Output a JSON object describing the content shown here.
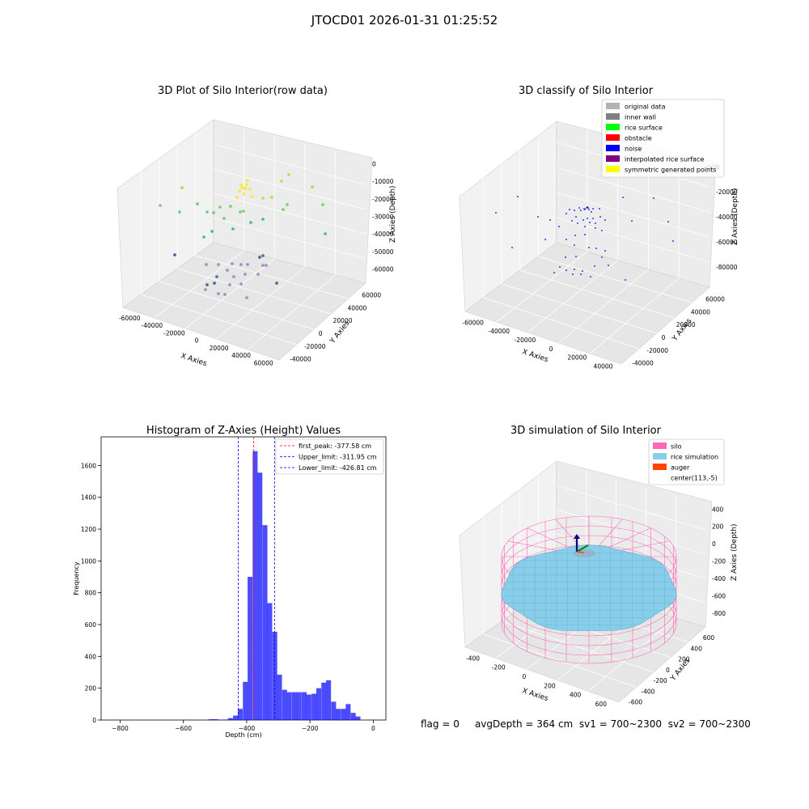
{
  "suptitle": "JTOCD01 2026-01-31 01:25:52",
  "status": {
    "flag": "flag = 0",
    "avg_depth": "avgDepth = 364 cm",
    "sv1": "sv1 = 700~2300",
    "sv2": "sv2 = 700~2300"
  },
  "chart_data": [
    {
      "type": "scatter",
      "title": "3D Plot of Silo Interior(row data)",
      "xlabel": "X Axies",
      "ylabel": "Y Axies",
      "zlabel": "Z Axies (Depth)",
      "x_ticks": [
        "-60000",
        "-40000",
        "-20000",
        "0",
        "20000",
        "40000",
        "60000"
      ],
      "y_ticks": [
        "-40000",
        "-20000",
        "0",
        "20000",
        "40000",
        "60000"
      ],
      "z_ticks": [
        "0",
        "-10000",
        "-20000",
        "-30000",
        "-40000",
        "-50000",
        "-60000"
      ],
      "grid": true,
      "colormap": "viridis"
    },
    {
      "type": "scatter",
      "title": "3D classify of Silo Interior",
      "xlabel": "X Axies",
      "ylabel": "Y Axies",
      "zlabel": "Z Axies (Depth)",
      "x_ticks": [
        "-60000",
        "-40000",
        "-20000",
        "0",
        "20000",
        "40000"
      ],
      "y_ticks": [
        "-40000",
        "-20000",
        "0",
        "20000",
        "40000",
        "60000"
      ],
      "z_ticks": [
        "0",
        "-20000",
        "-40000",
        "-60000",
        "-80000"
      ],
      "z_top_partial": "000",
      "grid": true,
      "legend_position": "top-right",
      "legend": [
        {
          "label": "original data",
          "color": "#b3b3b3"
        },
        {
          "label": "inner wall",
          "color": "#808080"
        },
        {
          "label": "rice surface",
          "color": "#00ff00"
        },
        {
          "label": "obstacle",
          "color": "#ff0000"
        },
        {
          "label": "noise",
          "color": "#0000ff"
        },
        {
          "label": "interpolated rice surface",
          "color": "#800080"
        },
        {
          "label": "symmetric generated points",
          "color": "#ffff00"
        }
      ]
    },
    {
      "type": "bar",
      "title": "Histogram of Z-Axies (Height) Values",
      "xlabel": "Depth (cm)",
      "ylabel": "Frequency",
      "xlim": [
        -860,
        40
      ],
      "ylim": [
        0,
        1780
      ],
      "x_ticks": [
        -800,
        -600,
        -400,
        -200,
        0
      ],
      "y_ticks": [
        0,
        200,
        400,
        600,
        800,
        1000,
        1200,
        1400,
        1600
      ],
      "bar_color": "#0000ff",
      "bin_width": 15.5,
      "bins": [
        {
          "left": -520,
          "count": 5
        },
        {
          "left": -505,
          "count": 5
        },
        {
          "left": -490,
          "count": 2
        },
        {
          "left": -474,
          "count": 3
        },
        {
          "left": -459,
          "count": 12
        },
        {
          "left": -443,
          "count": 28
        },
        {
          "left": -428,
          "count": 70
        },
        {
          "left": -412,
          "count": 240
        },
        {
          "left": -397,
          "count": 900
        },
        {
          "left": -381,
          "count": 1690
        },
        {
          "left": -366,
          "count": 1555
        },
        {
          "left": -350,
          "count": 1225
        },
        {
          "left": -335,
          "count": 735
        },
        {
          "left": -319,
          "count": 555
        },
        {
          "left": -304,
          "count": 285
        },
        {
          "left": -288,
          "count": 190
        },
        {
          "left": -273,
          "count": 175
        },
        {
          "left": -257,
          "count": 175
        },
        {
          "left": -242,
          "count": 175
        },
        {
          "left": -226,
          "count": 175
        },
        {
          "left": -211,
          "count": 160
        },
        {
          "left": -195,
          "count": 165
        },
        {
          "left": -180,
          "count": 200
        },
        {
          "left": -164,
          "count": 235
        },
        {
          "left": -149,
          "count": 250
        },
        {
          "left": -133,
          "count": 115
        },
        {
          "left": -118,
          "count": 70
        },
        {
          "left": -102,
          "count": 70
        },
        {
          "left": -87,
          "count": 100
        },
        {
          "left": -71,
          "count": 45
        },
        {
          "left": -56,
          "count": 22
        },
        {
          "left": -40,
          "count": 0
        }
      ],
      "lines": [
        {
          "label": "first_peak: -377.58 cm",
          "x": -377.58,
          "color": "#ff0000"
        },
        {
          "label": "Upper_limit: -311.95 cm",
          "x": -311.95,
          "color": "#0000ff"
        },
        {
          "label": "Lower_limit: -426.81 cm",
          "x": -426.81,
          "color": "#0000ff"
        }
      ],
      "legend_position": "top-right"
    },
    {
      "type": "scatter",
      "title": "3D simulation of Silo Interior",
      "xlabel": "X Axies",
      "ylabel": "Y Axies",
      "zlabel": "Z Axies (Depth)",
      "x_ticks": [
        "-400",
        "-200",
        "0",
        "200",
        "400",
        "600"
      ],
      "y_ticks": [
        "-600",
        "-400",
        "-200",
        "0",
        "200",
        "400",
        "600"
      ],
      "z_ticks": [
        "400",
        "200",
        "0",
        "-200",
        "-400",
        "-600",
        "-800"
      ],
      "grid": true,
      "legend_position": "top-right",
      "legend": [
        {
          "label": "silo",
          "color": "#ff69b4"
        },
        {
          "label": "rice simulation",
          "color": "#87ceeb"
        },
        {
          "label": "auger",
          "color": "#ff4500"
        },
        {
          "label": "center(113,-5)",
          "color": ""
        }
      ]
    }
  ]
}
